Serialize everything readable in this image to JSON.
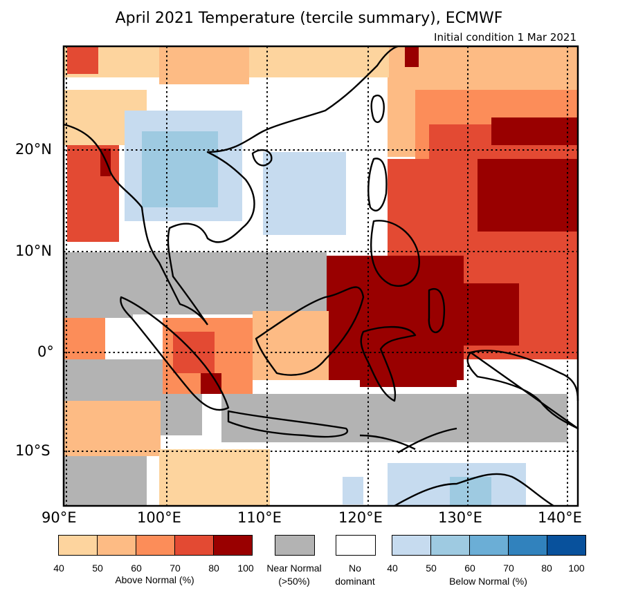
{
  "title": "April 2021 Temperature (tercile summary), ECMWF",
  "subtitle": "Initial condition 1 Mar 2021",
  "lat_labels": [
    "20°N",
    "10°N",
    "0°",
    "10°S"
  ],
  "lon_labels": [
    "90°E",
    "100°E",
    "110°E",
    "120°E",
    "130°E",
    "140°E"
  ],
  "legend": {
    "above": {
      "caption": "Above Normal (%)",
      "ticks": [
        "40",
        "50",
        "60",
        "70",
        "80",
        "100"
      ],
      "colors": [
        "#fdd49e",
        "#fdbb84",
        "#fc8d59",
        "#e34a33",
        "#990000"
      ]
    },
    "near": {
      "caption_line1": "Near Normal",
      "caption_line2": "(>50%)",
      "color": "#b3b3b3"
    },
    "none": {
      "caption_line1": "No",
      "caption_line2": "dominant",
      "color": "#ffffff"
    },
    "below": {
      "caption": "Below Normal (%)",
      "ticks": [
        "40",
        "50",
        "60",
        "70",
        "80",
        "100"
      ],
      "colors": [
        "#c6dbef",
        "#9ecae1",
        "#6baed6",
        "#3182bd",
        "#08519c"
      ]
    }
  },
  "map_colors": {
    "above_light": "#fdd49e",
    "above_mid": "#fdbb84",
    "above_orange": "#fc8d59",
    "above_red": "#e34a33",
    "above_dark": "#990000",
    "near": "#b3b3b3",
    "below_light": "#c6dbef",
    "below_mid": "#9ecae1"
  }
}
